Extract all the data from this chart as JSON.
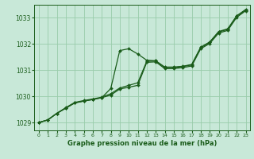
{
  "xlabel": "Graphe pression niveau de la mer (hPa)",
  "xlim": [
    -0.5,
    23.5
  ],
  "ylim": [
    1028.7,
    1033.5
  ],
  "yticks": [
    1029,
    1030,
    1031,
    1032,
    1033
  ],
  "xticks": [
    0,
    1,
    2,
    3,
    4,
    5,
    6,
    7,
    8,
    9,
    10,
    11,
    12,
    13,
    14,
    15,
    16,
    17,
    18,
    19,
    20,
    21,
    22,
    23
  ],
  "bg_color": "#c8e8d8",
  "grid_color": "#99ccaa",
  "line_color": "#1a5c1a",
  "series_arch": [
    1029.0,
    1029.1,
    1029.35,
    1029.55,
    1029.75,
    1029.82,
    1029.88,
    1029.95,
    1030.3,
    1031.75,
    1031.82,
    1031.62,
    1031.38,
    1031.36,
    1031.12,
    1031.12,
    1031.15,
    1031.22,
    1031.88,
    1032.08,
    1032.48,
    1032.58,
    1033.08,
    1033.32
  ],
  "series_low": [
    1029.0,
    1029.1,
    1029.35,
    1029.55,
    1029.75,
    1029.82,
    1029.88,
    1029.95,
    1030.05,
    1030.28,
    1030.35,
    1030.42,
    1031.3,
    1031.32,
    1031.06,
    1031.06,
    1031.1,
    1031.16,
    1031.82,
    1032.02,
    1032.42,
    1032.52,
    1033.02,
    1033.27
  ],
  "series_mid": [
    1029.0,
    1029.1,
    1029.35,
    1029.57,
    1029.77,
    1029.84,
    1029.9,
    1029.97,
    1030.1,
    1030.32,
    1030.42,
    1030.52,
    1031.34,
    1031.36,
    1031.1,
    1031.1,
    1031.14,
    1031.2,
    1031.86,
    1032.06,
    1032.46,
    1032.56,
    1033.06,
    1033.3
  ]
}
